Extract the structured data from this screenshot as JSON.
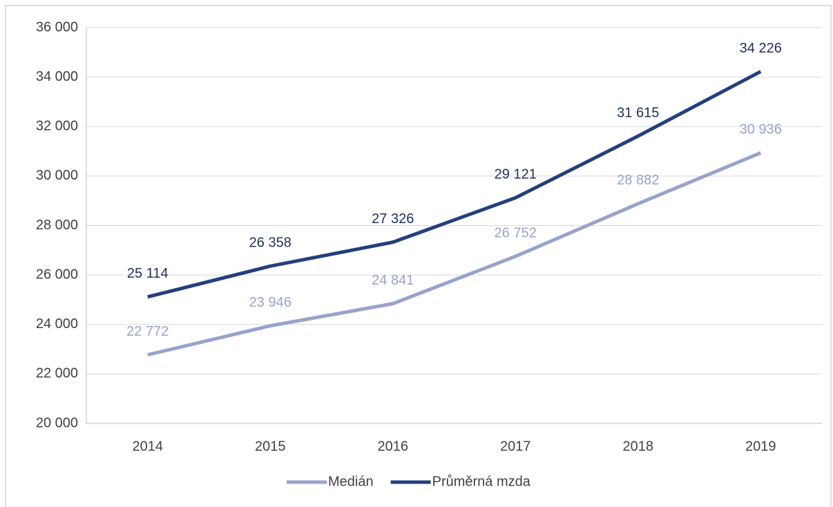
{
  "chart_data": {
    "type": "line",
    "categories": [
      "2014",
      "2015",
      "2016",
      "2017",
      "2018",
      "2019"
    ],
    "series": [
      {
        "name": "Medián",
        "color": "#97a3cb",
        "values": [
          22772,
          23946,
          24841,
          26752,
          28882,
          30936
        ],
        "value_labels": [
          "22 772",
          "23 946",
          "24 841",
          "26 752",
          "28 882",
          "30 936"
        ]
      },
      {
        "name": "Průměrná mzda",
        "color": "#233f7d",
        "values": [
          25114,
          26358,
          27326,
          29121,
          31615,
          34226
        ],
        "value_labels": [
          "25 114",
          "26 358",
          "27 326",
          "29 121",
          "31 615",
          "34 226"
        ]
      }
    ],
    "ylim": [
      20000,
      36000
    ],
    "yticks": [
      {
        "value": 20000,
        "label": "20 000"
      },
      {
        "value": 22000,
        "label": "22 000"
      },
      {
        "value": 24000,
        "label": "24 000"
      },
      {
        "value": 26000,
        "label": "26 000"
      },
      {
        "value": 28000,
        "label": "28 000"
      },
      {
        "value": 30000,
        "label": "30 000"
      },
      {
        "value": 32000,
        "label": "32 000"
      },
      {
        "value": 34000,
        "label": "34 000"
      },
      {
        "value": 36000,
        "label": "36 000"
      }
    ],
    "grid": true,
    "legend": "bottom"
  }
}
